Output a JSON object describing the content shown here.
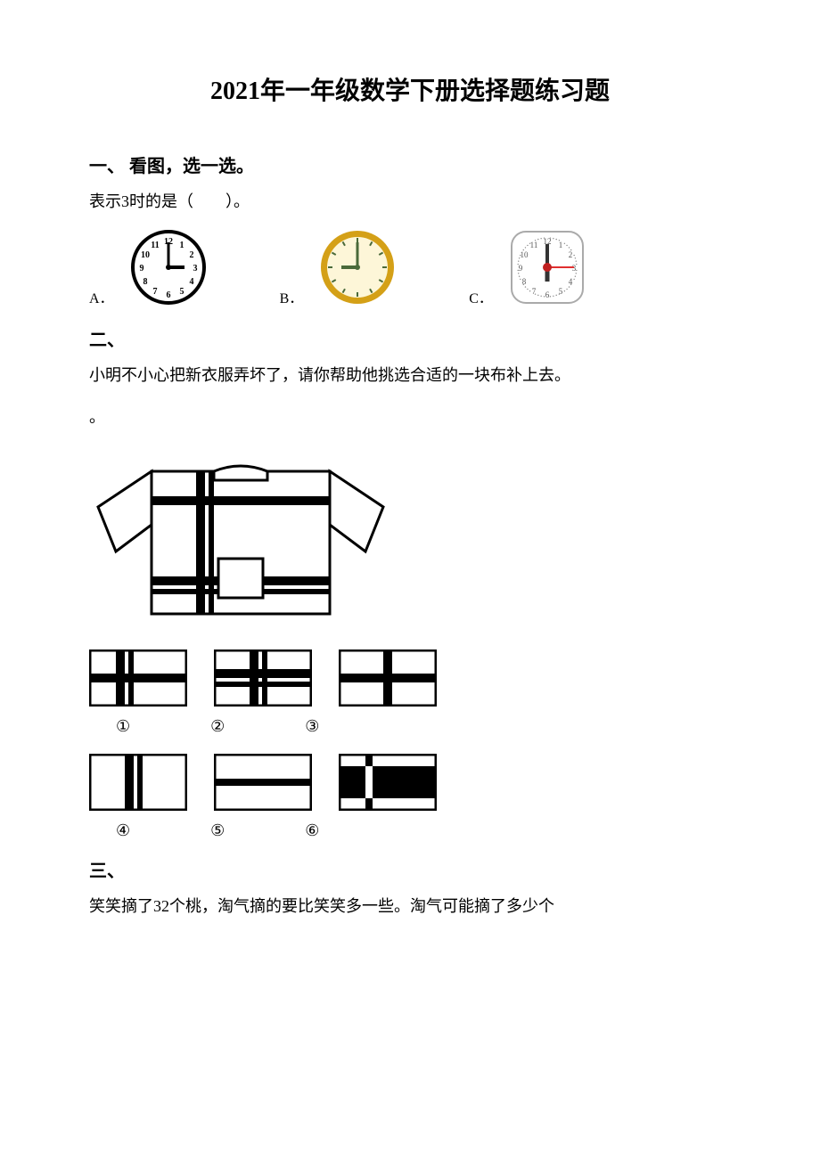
{
  "title": "2021年一年级数学下册选择题练习题",
  "s1": {
    "heading": "一、 看图，选一选。",
    "q": "表示3时的是（　　）。",
    "optA": "A．",
    "optB": "B．",
    "optC": "C．",
    "clockA": {
      "rim": "#000000",
      "face": "#ffffff",
      "nums": [
        "12",
        "1",
        "2",
        "3",
        "4",
        "5",
        "6",
        "7",
        "8",
        "9",
        "10",
        "11"
      ],
      "hourAngle": 90,
      "minAngle": 0,
      "hourLen": 18,
      "minLen": 28,
      "numColor": "#000000",
      "handColor": "#000000"
    },
    "clockB": {
      "rim": "#d4a017",
      "face": "#fdf6d8",
      "hourAngle": 270,
      "minAngle": 0,
      "hourLen": 18,
      "minLen": 28,
      "numColor": "#4a6a3a",
      "handColor": "#4a6a3a",
      "rimW": 6
    },
    "clockC": {
      "rim": "#888888",
      "face": "#ffffff",
      "hourAngle": 180,
      "minAngle": 0,
      "secAngle": 90,
      "hourLen": 16,
      "minLen": 26,
      "secLen": 30,
      "numColor": "#555555",
      "handColor": "#333333",
      "secColor": "#e03030",
      "centerColor": "#c02020"
    }
  },
  "s2": {
    "heading": "二、",
    "q": "小明不小心把新衣服弄坏了，请你帮助他挑选合适的一块布补上去。",
    "period": "。",
    "labels": [
      "①",
      "②",
      "③",
      "④",
      "⑤",
      "⑥"
    ],
    "stroke": "#000000",
    "patchW": 110,
    "patchH": 64,
    "thick": 10
  },
  "s3": {
    "heading": "三、",
    "q": "笑笑摘了32个桃，淘气摘的要比笑笑多一些。淘气可能摘了多少个"
  }
}
